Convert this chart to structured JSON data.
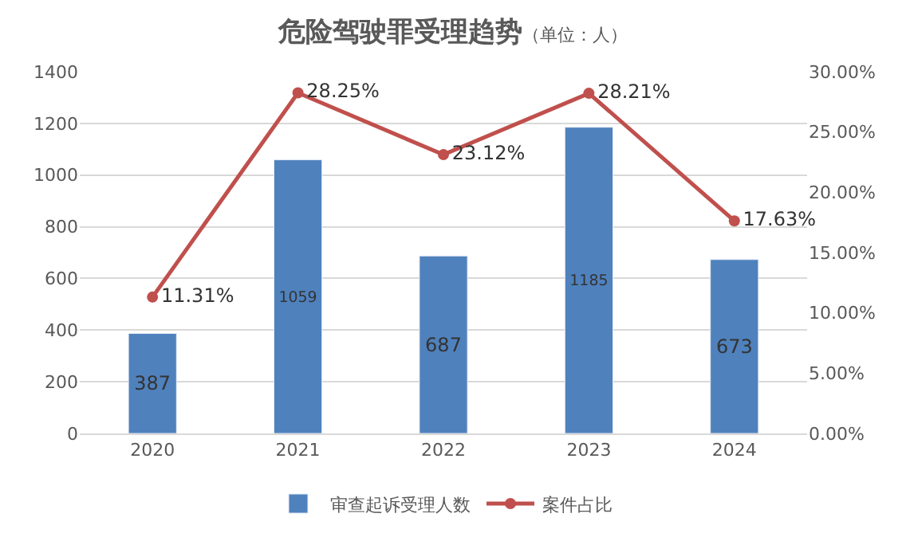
{
  "chart_data": {
    "type": "bar",
    "title": "危险驾驶罪受理趋势",
    "subtitle": "（单位：人）",
    "categories": [
      "2020",
      "2021",
      "2022",
      "2023",
      "2024"
    ],
    "series": [
      {
        "name": "审查起诉受理人数",
        "color": "#4f81bd",
        "values": [
          387,
          1059,
          687,
          1185,
          673
        ],
        "value_labels": [
          "387",
          "1059",
          "687",
          "1185",
          "673"
        ]
      },
      {
        "name": "案件占比",
        "type": "line",
        "axis": "y2",
        "color": "#c0504d",
        "values": [
          11.31,
          28.25,
          23.12,
          28.21,
          17.63
        ],
        "value_labels": [
          "11.31%",
          "28.25%",
          "23.12%",
          "28.21%",
          "17.63%"
        ]
      }
    ],
    "ylim": [
      0,
      1400
    ],
    "yticks": [
      0,
      200,
      400,
      600,
      800,
      1000,
      1200,
      1400
    ],
    "y2lim": [
      0,
      30
    ],
    "y2ticks": [
      {
        "value": 0,
        "label": "0.00%"
      },
      {
        "value": 5,
        "label": "5.00%"
      },
      {
        "value": 10,
        "label": "10.00%"
      },
      {
        "value": 15,
        "label": "15.00%"
      },
      {
        "value": 20,
        "label": "20.00%"
      },
      {
        "value": 25,
        "label": "25.00%"
      },
      {
        "value": 30,
        "label": "30.00%"
      }
    ],
    "grid": "y",
    "legend": "bottom",
    "marker": "circle",
    "line_style": "solid"
  }
}
